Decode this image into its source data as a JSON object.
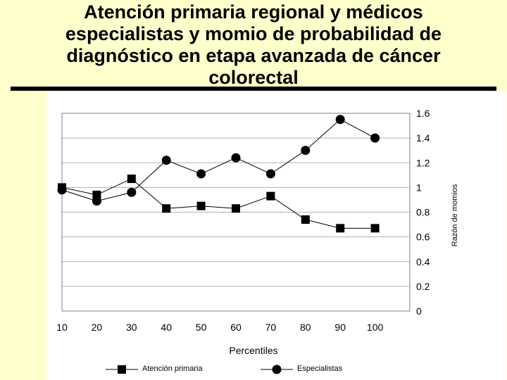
{
  "slide": {
    "title": "Atención primaria regional y médicos especialistas y momio de probabilidad de diagnóstico en etapa avanzada de cáncer colorectal"
  },
  "chart_data": {
    "type": "line",
    "xlabel": "Percentiles",
    "ylabel": "Razón de momios",
    "x_ticks": [
      10,
      20,
      30,
      40,
      50,
      60,
      70,
      80,
      90,
      100
    ],
    "y_ticks": [
      0,
      0.2,
      0.4,
      0.6,
      0.8,
      1,
      1.2,
      1.4,
      1.6
    ],
    "ylim": [
      0,
      1.6
    ],
    "grid": true,
    "legend_position": "bottom",
    "series": [
      {
        "name": "Atención primaria",
        "marker": "square",
        "color": "#000000",
        "x": [
          10,
          20,
          30,
          40,
          50,
          60,
          70,
          80,
          90,
          100
        ],
        "values": [
          1.0,
          0.94,
          1.07,
          0.83,
          0.85,
          0.83,
          0.93,
          0.74,
          0.67,
          0.67
        ]
      },
      {
        "name": "Especialistas",
        "marker": "circle",
        "color": "#000000",
        "x": [
          10,
          20,
          30,
          40,
          50,
          60,
          70,
          80,
          90,
          100
        ],
        "values": [
          0.98,
          0.89,
          0.96,
          1.22,
          1.11,
          1.24,
          1.11,
          1.3,
          1.55,
          1.4
        ]
      }
    ]
  }
}
